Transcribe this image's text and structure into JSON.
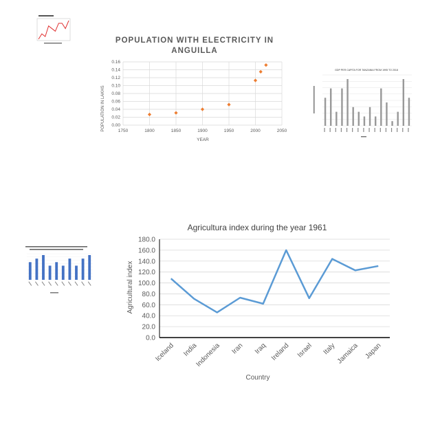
{
  "chart_data": [
    {
      "type": "scatter",
      "title": "POPULATION WITH ELECTRICITY IN ANGUILLA",
      "xlabel": "YEAR",
      "ylabel": "POPULATION IN LAKHS",
      "x": [
        1800,
        1850,
        1900,
        1950,
        2000,
        2010,
        2020
      ],
      "y": [
        0.027,
        0.031,
        0.04,
        0.052,
        0.113,
        0.135,
        0.152
      ],
      "xlim": [
        1750,
        2050
      ],
      "ylim": [
        0,
        0.16
      ],
      "xticks": [
        "1750",
        "1800",
        "1850",
        "1900",
        "1950",
        "2000",
        "2050"
      ],
      "yticks": [
        "0.00",
        "0.02",
        "0.04",
        "0.06",
        "0.08",
        "0.10",
        "0.12",
        "0.14",
        "0.16"
      ],
      "grid": true,
      "color": "#ED7D31"
    },
    {
      "type": "line",
      "title": "Agricultura index during the year 1961",
      "xlabel": "Country",
      "ylabel": "Agricultural index",
      "categories": [
        "Iceland",
        "India",
        "Indonesia",
        "Iran",
        "Iraq",
        "Ireland",
        "Israel",
        "Italy",
        "Jamaica",
        "Japan"
      ],
      "values": [
        108,
        71,
        46,
        73,
        62,
        160,
        72,
        144,
        123,
        131
      ],
      "ylim": [
        0,
        180
      ],
      "yticks": [
        "0.0",
        "20.0",
        "40.0",
        "60.0",
        "80.0",
        "100.0",
        "120.0",
        "140.0",
        "160.0",
        "180.0"
      ],
      "grid": true,
      "color": "#5B9BD5"
    }
  ],
  "thumbnails": [
    {
      "kind": "line",
      "color": "#e03030",
      "values": [
        3,
        5,
        4,
        8,
        7,
        6,
        9,
        9,
        7,
        10
      ]
    },
    {
      "kind": "bar",
      "title": "GDP PER CAPITA FOR TANZANIA FROM 1995 TO 2018",
      "color": "#999999",
      "values": [
        6,
        8,
        3,
        8,
        10,
        4,
        3,
        2,
        4,
        2,
        8,
        5,
        1,
        3,
        10,
        6
      ]
    },
    {
      "kind": "bar",
      "color": "#4472C4",
      "values": [
        5,
        6,
        7,
        4,
        5,
        4,
        6,
        4,
        6,
        7
      ]
    }
  ]
}
